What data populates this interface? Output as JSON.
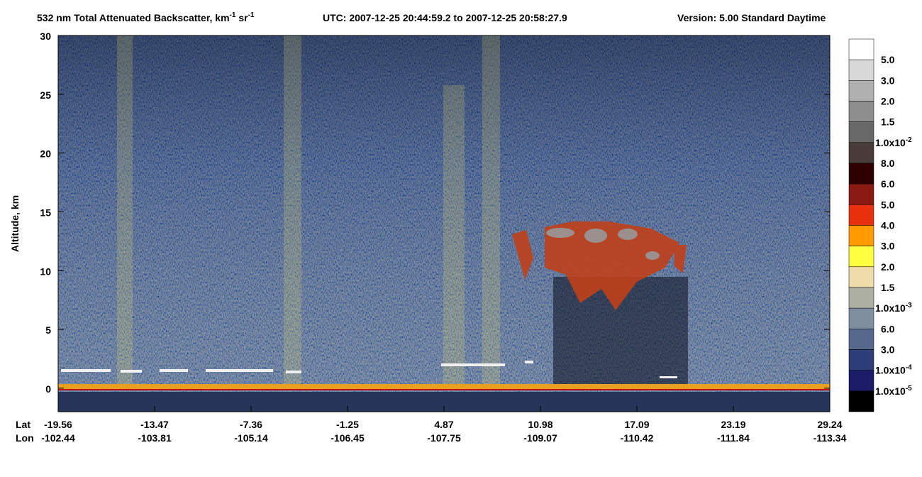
{
  "chart_data": {
    "type": "curtain",
    "title": {
      "main": "532 nm Total Attenuated Backscatter, km",
      "sup1": "-1",
      "mid": " sr",
      "sup2": "-1",
      "utc": "UTC:  2007-12-25 20:44:59.2  to  2007-12-25 20:58:27.9",
      "version": "Version: 5.00  Standard  Daytime"
    },
    "ylabel": "Altitude, km",
    "ylim": [
      -2,
      30
    ],
    "yticks": [
      0,
      5,
      10,
      15,
      20,
      25,
      30
    ],
    "x_axis": {
      "lat_label": "Lat",
      "lon_label": "Lon",
      "lat": [
        -19.56,
        -13.47,
        -7.36,
        -1.25,
        4.87,
        10.98,
        17.09,
        23.19,
        29.24
      ],
      "lon": [
        -102.44,
        -103.81,
        -105.14,
        -106.45,
        -107.75,
        -109.07,
        -110.42,
        -111.84,
        -113.34
      ]
    },
    "colorbar": {
      "colors": [
        "#ffffff",
        "#d8d8d8",
        "#b0b0b0",
        "#8e8e8e",
        "#686868",
        "#4a3c3a",
        "#2e0000",
        "#8b1a12",
        "#e8300c",
        "#ff9a00",
        "#ffff40",
        "#eedcaa",
        "#aeb0a4",
        "#7f8fa0",
        "#56688c",
        "#2e3e78",
        "#1c1c68",
        "#000000"
      ],
      "labels": [
        "5.0",
        "3.0",
        "2.0",
        "1.5",
        {
          "text": "1.0x10",
          "sup": "-2"
        },
        "8.0",
        "6.0",
        "5.0",
        "4.0",
        "3.0",
        "2.0",
        "1.5",
        {
          "text": "1.0x10",
          "sup": "-3"
        },
        "6.0",
        "3.0",
        {
          "text": "1.0x10",
          "sup": "-4"
        },
        {
          "text": "1.0x10",
          "sup": "-5"
        }
      ]
    }
  }
}
